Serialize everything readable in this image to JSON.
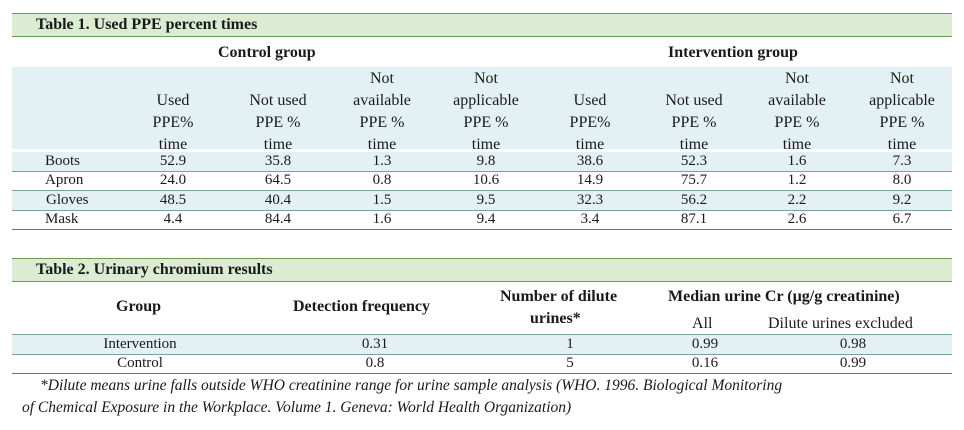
{
  "table1": {
    "title": "Table 1. Used PPE percent times",
    "groups": [
      "Control group",
      "Intervention group"
    ],
    "columns": [
      [
        "Used",
        "PPE%",
        "time"
      ],
      [
        "Not used",
        "PPE %",
        "time"
      ],
      [
        "Not",
        "available",
        "PPE %",
        "time"
      ],
      [
        "Not",
        "applicable",
        "PPE %",
        "time"
      ],
      [
        "Used",
        "PPE%",
        "time"
      ],
      [
        "Not used",
        "PPE %",
        "time"
      ],
      [
        "Not",
        "available",
        "PPE %",
        "time"
      ],
      [
        "Not",
        "applicable",
        "PPE %",
        "time"
      ]
    ],
    "rows": [
      {
        "label": "Boots",
        "values": [
          "52.9",
          "35.8",
          "1.3",
          "9.8",
          "38.6",
          "52.3",
          "1.6",
          "7.3"
        ]
      },
      {
        "label": "Apron",
        "values": [
          "24.0",
          "64.5",
          "0.8",
          "10.6",
          "14.9",
          "75.7",
          "1.2",
          "8.0"
        ]
      },
      {
        "label": "Gloves",
        "values": [
          "48.5",
          "40.4",
          "1.5",
          "9.5",
          "32.3",
          "56.2",
          "2.2",
          "9.2"
        ]
      },
      {
        "label": "Mask",
        "values": [
          "4.4",
          "84.4",
          "1.6",
          "9.4",
          "3.4",
          "87.1",
          "2.6",
          "6.7"
        ]
      }
    ]
  },
  "table2": {
    "title": "Table 2. Urinary chromium results",
    "headers": {
      "group": "Group",
      "detection": "Detection frequency",
      "dilute_line1": "Number of dilute",
      "dilute_line2": "urines*",
      "median": "Median urine Cr (µg/g creatinine)",
      "all": "All",
      "excluded": "Dilute urines excluded"
    },
    "rows": [
      {
        "group": "Intervention",
        "detection": "0.31",
        "dilute": "1",
        "all": "0.99",
        "excluded": "0.98"
      },
      {
        "group": "Control",
        "detection": "0.8",
        "dilute": "5",
        "all": "0.16",
        "excluded": "0.99"
      }
    ],
    "footnote_line1": "*Dilute means urine falls outside WHO creatinine range for urine sample analysis (WHO. 1996. Biological Monitoring",
    "footnote_line2": "of Chemical Exposure in the Workplace. Volume 1. Geneva: World Health Organization)"
  }
}
